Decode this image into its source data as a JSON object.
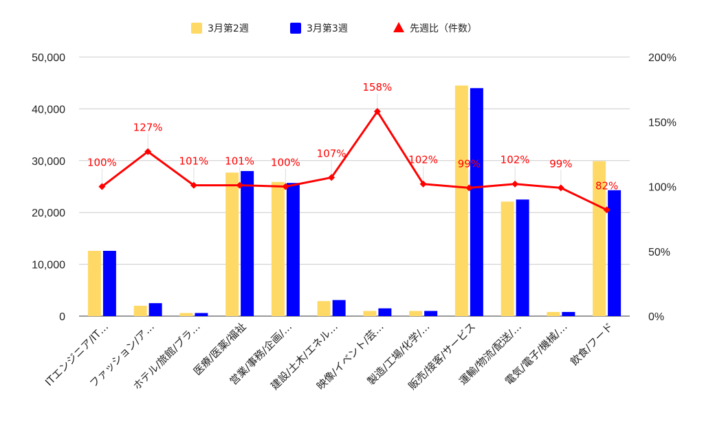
{
  "legend": {
    "items": [
      {
        "label": "3月第2週",
        "color": "#ffd966",
        "shape": "square"
      },
      {
        "label": "3月第3週",
        "color": "#0000ff",
        "shape": "square"
      },
      {
        "label": "先週比（件数）",
        "color": "#ff0000",
        "shape": "triangle"
      }
    ],
    "position": "top-center"
  },
  "chart_data": {
    "type": "bar",
    "categories": [
      "ITエンジニア/IT…",
      "ファッション/ア…",
      "ホテル/旅館/ブラ…",
      "医療/医薬/福祉",
      "営業/事務/企画/…",
      "建設/土木/エネル…",
      "映像/イベント/芸…",
      "製造/工場/化学/…",
      "販売/接客/サービス",
      "運輸/物流/配送/…",
      "電気/電子/機械/…",
      "飲食/フード"
    ],
    "series": [
      {
        "name": "3月第2週",
        "type": "bar",
        "axis": "left",
        "color": "#ffd966",
        "values": [
          12600,
          2000,
          600,
          27700,
          25900,
          2900,
          1000,
          1000,
          44500,
          22100,
          800,
          29900
        ]
      },
      {
        "name": "3月第3週",
        "type": "bar",
        "axis": "left",
        "color": "#0000ff",
        "values": [
          12600,
          2500,
          600,
          28000,
          25700,
          3100,
          1500,
          1000,
          44000,
          22500,
          800,
          24300
        ]
      },
      {
        "name": "先週比（件数）",
        "type": "line",
        "axis": "right",
        "color": "#ff0000",
        "marker": "diamond",
        "values": [
          100,
          127,
          101,
          101,
          100,
          107,
          158,
          102,
          99,
          102,
          99,
          82
        ],
        "labels": [
          "100%",
          "127%",
          "101%",
          "101%",
          "100%",
          "107%",
          "158%",
          "102%",
          "99%",
          "102%",
          "99%",
          "82%"
        ]
      }
    ],
    "y_left": {
      "min": 0,
      "max": 50000,
      "ticks": [
        0,
        10000,
        20000,
        30000,
        40000,
        50000
      ],
      "tick_labels": [
        "0",
        "10,000",
        "20,000",
        "30,000",
        "40,000",
        "50,000"
      ]
    },
    "y_right": {
      "min": 0,
      "max": 200,
      "ticks": [
        0,
        50,
        100,
        150,
        200
      ],
      "tick_labels": [
        "0%",
        "50%",
        "100%",
        "150%",
        "200%"
      ]
    },
    "grid": true
  }
}
